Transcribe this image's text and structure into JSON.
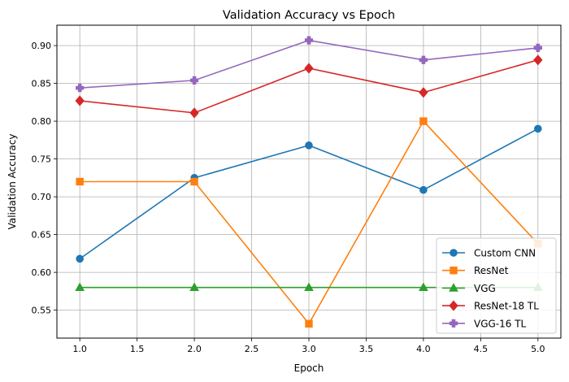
{
  "chart_data": {
    "type": "line",
    "title": "Validation Accuracy vs Epoch",
    "xlabel": "Epoch",
    "ylabel": "Validation Accuracy",
    "x": [
      1,
      2,
      3,
      4,
      5
    ],
    "xlim": [
      0.8,
      5.2
    ],
    "ylim": [
      0.513,
      0.927
    ],
    "xticks": [
      1.0,
      1.5,
      2.0,
      2.5,
      3.0,
      3.5,
      4.0,
      4.5,
      5.0
    ],
    "xtick_labels": [
      "1.0",
      "1.5",
      "2.0",
      "2.5",
      "3.0",
      "3.5",
      "4.0",
      "4.5",
      "5.0"
    ],
    "yticks": [
      0.55,
      0.6,
      0.65,
      0.7,
      0.75,
      0.8,
      0.85,
      0.9
    ],
    "ytick_labels": [
      "0.55",
      "0.60",
      "0.65",
      "0.70",
      "0.75",
      "0.80",
      "0.85",
      "0.90"
    ],
    "grid": true,
    "legend_position": "lower-right",
    "series": [
      {
        "name": "Custom CNN",
        "values": [
          0.618,
          0.725,
          0.768,
          0.709,
          0.79
        ],
        "color": "#1f77b4",
        "marker": "circle"
      },
      {
        "name": "ResNet",
        "values": [
          0.72,
          0.72,
          0.532,
          0.8,
          0.638
        ],
        "color": "#ff7f0e",
        "marker": "square"
      },
      {
        "name": "VGG",
        "values": [
          0.58,
          0.58,
          0.58,
          0.58,
          0.58
        ],
        "color": "#2ca02c",
        "marker": "triangle"
      },
      {
        "name": "ResNet-18 TL",
        "values": [
          0.827,
          0.811,
          0.87,
          0.838,
          0.881
        ],
        "color": "#d62728",
        "marker": "diamond"
      },
      {
        "name": "VGG-16 TL",
        "values": [
          0.844,
          0.854,
          0.907,
          0.881,
          0.897
        ],
        "color": "#9467bd",
        "marker": "plus"
      }
    ]
  }
}
